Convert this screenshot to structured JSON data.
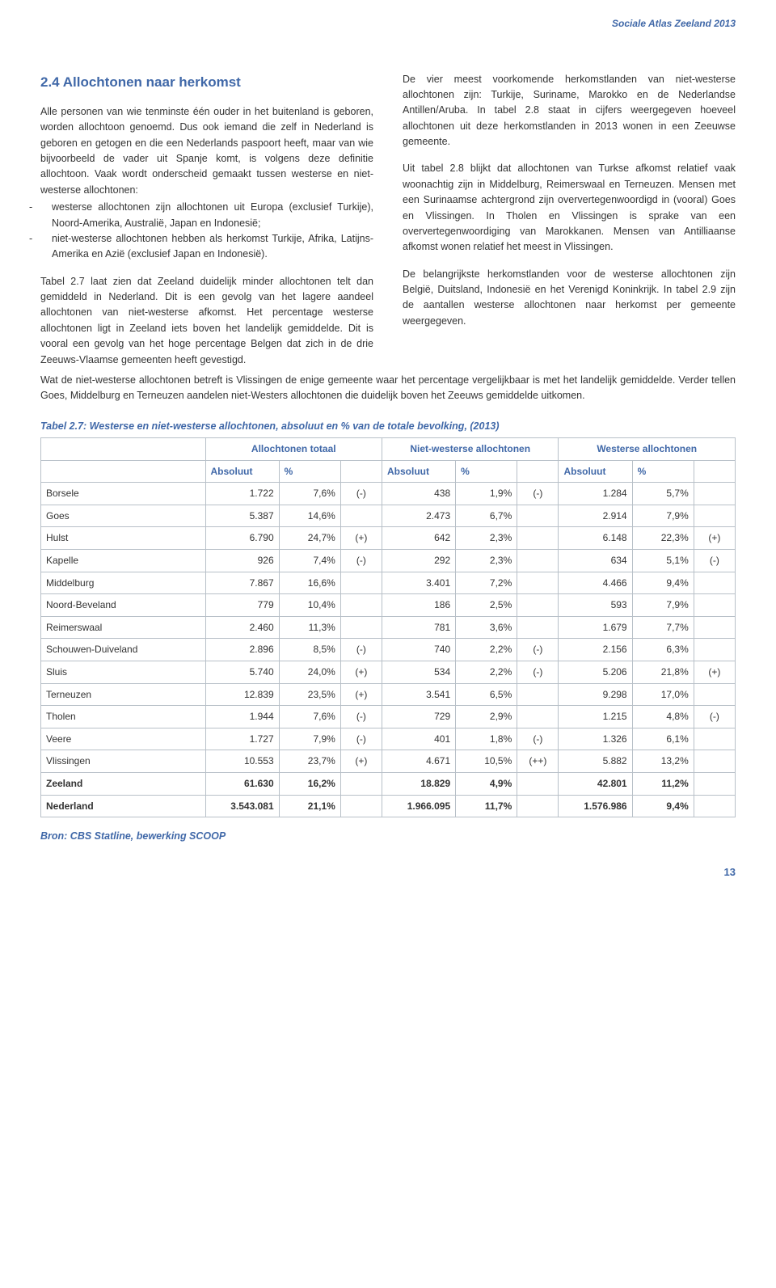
{
  "running_header": "Sociale Atlas Zeeland 2013",
  "section_title": "2.4 Allochtonen naar herkomst",
  "p1": "Alle personen van wie tenminste één ouder in het buitenland is geboren, worden allochtoon genoemd. Dus ook iemand die zelf in Nederland is geboren en getogen en die een Nederlands paspoort heeft, maar van wie bijvoorbeeld de vader uit Spanje komt, is volgens deze definitie allochtoon. Vaak wordt onderscheid gemaakt tussen westerse en niet-westerse allochtonen:",
  "bullet1": "westerse allochtonen zijn allochtonen uit Europa (exclusief Turkije), Noord-Amerika, Australië, Japan en Indonesië;",
  "bullet2": "niet-westerse allochtonen hebben als herkomst Turkije, Afrika, Latijns-Amerika en Azië (exclusief Japan en Indonesië).",
  "p2": "Tabel 2.7 laat zien dat Zeeland duidelijk minder allochtonen telt dan gemiddeld in Nederland. Dit is een gevolg van het lagere aandeel allochtonen van niet-westerse afkomst. Het percentage westerse allochtonen ligt in Zeeland iets boven het landelijk gemiddelde. Dit is vooral een gevolg van het hoge percentage Belgen dat zich in de drie Zeeuws-Vlaamse gemeenten heeft gevestigd.",
  "p3": "De vier meest voorkomende herkomstlanden van niet-westerse allochtonen zijn: Turkije, Suriname, Marokko en de Nederlandse Antillen/Aruba. In tabel 2.8 staat in cijfers weergegeven hoeveel allochtonen uit deze herkomstlanden in 2013 wonen in een Zeeuwse gemeente.",
  "p4": "Uit tabel 2.8 blijkt dat allochtonen van Turkse afkomst relatief vaak woonachtig zijn in Middelburg, Reimerswaal en Terneuzen. Mensen met een Surinaamse achtergrond zijn oververtegenwoordigd in (vooral) Goes en Vlissingen. In Tholen en Vlissingen is sprake van een oververtegenwoordiging van Marokkanen. Mensen van Antilliaanse afkomst wonen relatief het meest in Vlissingen.",
  "p5": "De belangrijkste herkomstlanden voor de westerse allochtonen zijn België, Duitsland, Indonesië en het Verenigd Koninkrijk. In tabel 2.9 zijn de aantallen westerse allochtonen naar herkomst per gemeente weergegeven.",
  "p6": "Wat de niet-westerse allochtonen betreft is Vlissingen de enige gemeente waar het percentage vergelijkbaar is met het landelijk gemiddelde. Verder tellen Goes, Middelburg en Terneuzen aandelen niet-Westers allochtonen die duidelijk boven het Zeeuws gemiddelde uitkomen.",
  "table": {
    "caption": "Tabel 2.7: Westerse en niet-westerse allochtonen, absoluut en % van de totale bevolking, (2013)",
    "group_headers": [
      "Allochtonen totaal",
      "Niet-westerse allochtonen",
      "Westerse allochtonen"
    ],
    "sub_headers": [
      "Absoluut",
      "%"
    ],
    "rows": [
      {
        "name": "Borsele",
        "t_abs": "1.722",
        "t_pct": "7,6%",
        "t_sym": "(-)",
        "n_abs": "438",
        "n_pct": "1,9%",
        "n_sym": "(-)",
        "w_abs": "1.284",
        "w_pct": "5,7%",
        "w_sym": ""
      },
      {
        "name": "Goes",
        "t_abs": "5.387",
        "t_pct": "14,6%",
        "t_sym": "",
        "n_abs": "2.473",
        "n_pct": "6,7%",
        "n_sym": "",
        "w_abs": "2.914",
        "w_pct": "7,9%",
        "w_sym": ""
      },
      {
        "name": "Hulst",
        "t_abs": "6.790",
        "t_pct": "24,7%",
        "t_sym": "(+)",
        "n_abs": "642",
        "n_pct": "2,3%",
        "n_sym": "",
        "w_abs": "6.148",
        "w_pct": "22,3%",
        "w_sym": "(+)"
      },
      {
        "name": "Kapelle",
        "t_abs": "926",
        "t_pct": "7,4%",
        "t_sym": "(-)",
        "n_abs": "292",
        "n_pct": "2,3%",
        "n_sym": "",
        "w_abs": "634",
        "w_pct": "5,1%",
        "w_sym": "(-)"
      },
      {
        "name": "Middelburg",
        "t_abs": "7.867",
        "t_pct": "16,6%",
        "t_sym": "",
        "n_abs": "3.401",
        "n_pct": "7,2%",
        "n_sym": "",
        "w_abs": "4.466",
        "w_pct": "9,4%",
        "w_sym": ""
      },
      {
        "name": "Noord-Beveland",
        "t_abs": "779",
        "t_pct": "10,4%",
        "t_sym": "",
        "n_abs": "186",
        "n_pct": "2,5%",
        "n_sym": "",
        "w_abs": "593",
        "w_pct": "7,9%",
        "w_sym": ""
      },
      {
        "name": "Reimerswaal",
        "t_abs": "2.460",
        "t_pct": "11,3%",
        "t_sym": "",
        "n_abs": "781",
        "n_pct": "3,6%",
        "n_sym": "",
        "w_abs": "1.679",
        "w_pct": "7,7%",
        "w_sym": ""
      },
      {
        "name": "Schouwen-Duiveland",
        "t_abs": "2.896",
        "t_pct": "8,5%",
        "t_sym": "(-)",
        "n_abs": "740",
        "n_pct": "2,2%",
        "n_sym": "(-)",
        "w_abs": "2.156",
        "w_pct": "6,3%",
        "w_sym": ""
      },
      {
        "name": "Sluis",
        "t_abs": "5.740",
        "t_pct": "24,0%",
        "t_sym": "(+)",
        "n_abs": "534",
        "n_pct": "2,2%",
        "n_sym": "(-)",
        "w_abs": "5.206",
        "w_pct": "21,8%",
        "w_sym": "(+)"
      },
      {
        "name": "Terneuzen",
        "t_abs": "12.839",
        "t_pct": "23,5%",
        "t_sym": "(+)",
        "n_abs": "3.541",
        "n_pct": "6,5%",
        "n_sym": "",
        "w_abs": "9.298",
        "w_pct": "17,0%",
        "w_sym": ""
      },
      {
        "name": "Tholen",
        "t_abs": "1.944",
        "t_pct": "7,6%",
        "t_sym": "(-)",
        "n_abs": "729",
        "n_pct": "2,9%",
        "n_sym": "",
        "w_abs": "1.215",
        "w_pct": "4,8%",
        "w_sym": "(-)"
      },
      {
        "name": "Veere",
        "t_abs": "1.727",
        "t_pct": "7,9%",
        "t_sym": "(-)",
        "n_abs": "401",
        "n_pct": "1,8%",
        "n_sym": "(-)",
        "w_abs": "1.326",
        "w_pct": "6,1%",
        "w_sym": ""
      },
      {
        "name": "Vlissingen",
        "t_abs": "10.553",
        "t_pct": "23,7%",
        "t_sym": "(+)",
        "n_abs": "4.671",
        "n_pct": "10,5%",
        "n_sym": "(++)",
        "w_abs": "5.882",
        "w_pct": "13,2%",
        "w_sym": ""
      },
      {
        "name": "Zeeland",
        "t_abs": "61.630",
        "t_pct": "16,2%",
        "t_sym": "",
        "n_abs": "18.829",
        "n_pct": "4,9%",
        "n_sym": "",
        "w_abs": "42.801",
        "w_pct": "11,2%",
        "w_sym": "",
        "summary": true
      },
      {
        "name": "Nederland",
        "t_abs": "3.543.081",
        "t_pct": "21,1%",
        "t_sym": "",
        "n_abs": "1.966.095",
        "n_pct": "11,7%",
        "n_sym": "",
        "w_abs": "1.576.986",
        "w_pct": "9,4%",
        "w_sym": "",
        "summary": true
      }
    ],
    "border_color": "#b8c0c8",
    "header_text_color": "#4068a8"
  },
  "source": "Bron: CBS Statline, bewerking SCOOP",
  "page_number": "13",
  "colors": {
    "accent": "#4068a8",
    "text": "#333333",
    "background": "#ffffff"
  }
}
